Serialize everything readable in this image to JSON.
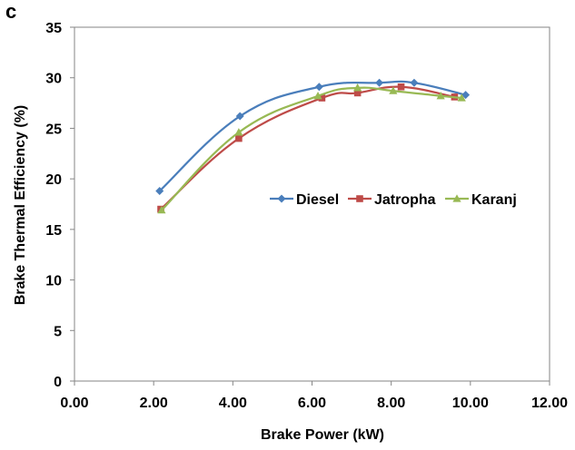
{
  "panel_label": "c",
  "chart_data": {
    "type": "line",
    "title": "",
    "xlabel": "Brake Power (kW)",
    "ylabel": "Brake Thermal Efficiency (%)",
    "xlim": [
      0,
      12
    ],
    "ylim": [
      0,
      35
    ],
    "x_ticks": [
      "0.00",
      "2.00",
      "4.00",
      "6.00",
      "8.00",
      "10.00",
      "12.00"
    ],
    "y_ticks": [
      "0",
      "5",
      "10",
      "15",
      "20",
      "25",
      "30",
      "35"
    ],
    "grid": false,
    "legend_position": "center-right",
    "series": [
      {
        "name": "Diesel",
        "color": "#4a7ebb",
        "marker": "diamond",
        "x": [
          2.15,
          4.18,
          6.18,
          7.7,
          8.58,
          9.88
        ],
        "y": [
          18.8,
          26.2,
          29.1,
          29.5,
          29.5,
          28.3
        ]
      },
      {
        "name": "Jatropha",
        "color": "#be4b48",
        "marker": "square",
        "x": [
          2.18,
          4.15,
          6.25,
          7.15,
          8.25,
          9.6
        ],
        "y": [
          17.0,
          24.0,
          28.0,
          28.5,
          29.1,
          28.1
        ]
      },
      {
        "name": "Karanj",
        "color": "#98b954",
        "marker": "triangle",
        "x": [
          2.2,
          4.15,
          6.15,
          7.15,
          8.05,
          9.25,
          9.78
        ],
        "y": [
          16.9,
          24.6,
          28.2,
          29.0,
          28.7,
          28.2,
          28.0
        ]
      }
    ]
  }
}
